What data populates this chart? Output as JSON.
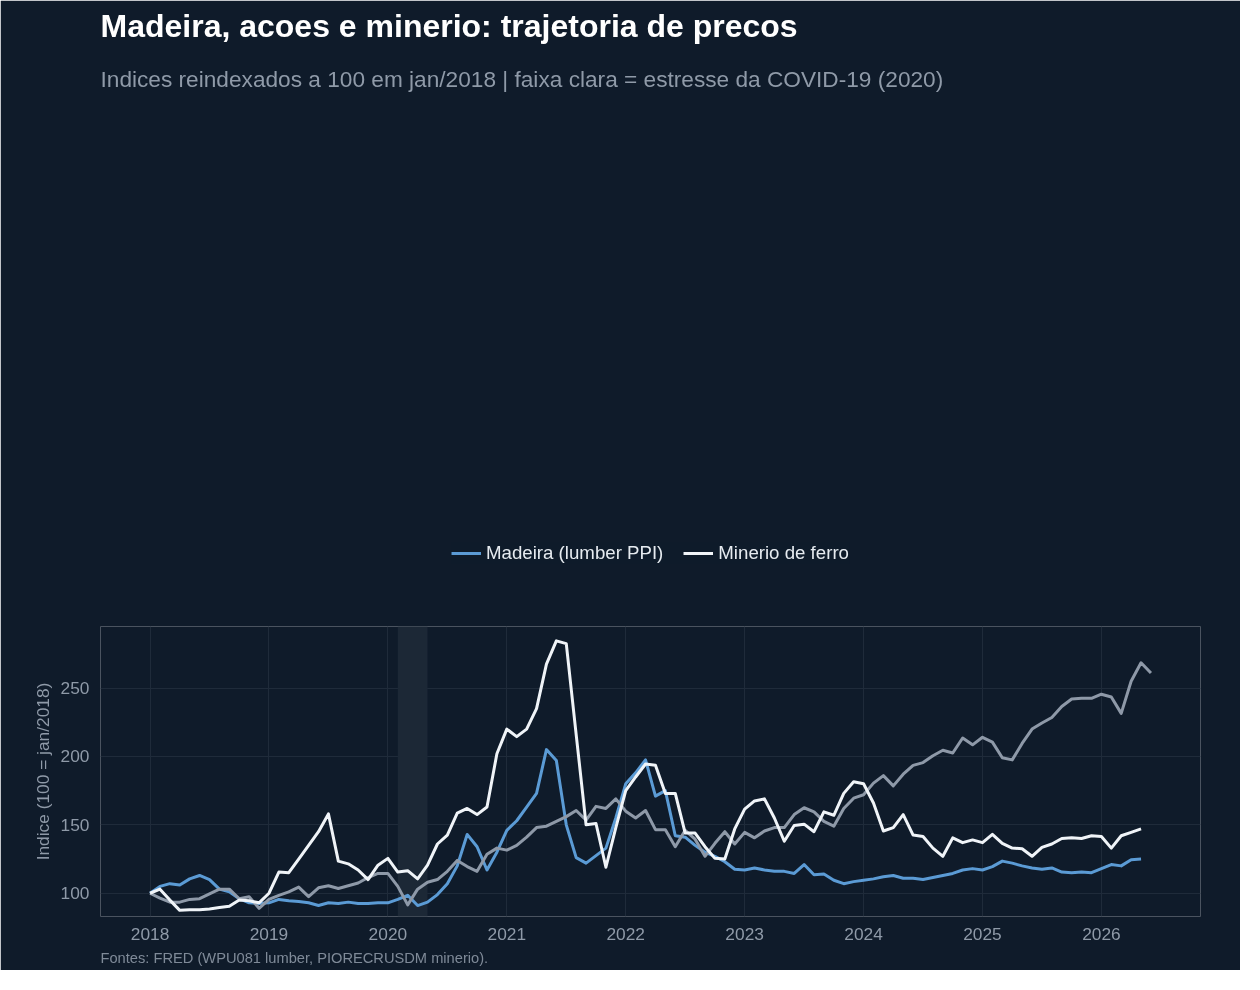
{
  "chart_data": {
    "type": "line",
    "title": "Madeira, acoes e minerio: trajetoria de precos",
    "subtitle": "Indices reindexados a 100 em jan/2018 | faixa clara = estresse da COVID-19 (2020)",
    "ylabel": "Indice (100 = jan/2018)",
    "annotations": [
      "Fontes: FRED (WPU081 lumber, PIORECRUSDM minerio)."
    ],
    "x": [
      "2018-01",
      "2018-02",
      "2018-03",
      "2018-04",
      "2018-05",
      "2018-06",
      "2018-07",
      "2018-08",
      "2018-09",
      "2018-10",
      "2018-11",
      "2018-12",
      "2019-01",
      "2019-02",
      "2019-03",
      "2019-04",
      "2019-05",
      "2019-06",
      "2019-07",
      "2019-08",
      "2019-09",
      "2019-10",
      "2019-11",
      "2019-12",
      "2020-01",
      "2020-02",
      "2020-03",
      "2020-04",
      "2020-05",
      "2020-06",
      "2020-07",
      "2020-08",
      "2020-09",
      "2020-10",
      "2020-11",
      "2020-12",
      "2021-01",
      "2021-02",
      "2021-03",
      "2021-04",
      "2021-05",
      "2021-06",
      "2021-07",
      "2021-08",
      "2021-09",
      "2021-10",
      "2021-11",
      "2021-12",
      "2022-01",
      "2022-02",
      "2022-03",
      "2022-04",
      "2022-05",
      "2022-06",
      "2022-07",
      "2022-08",
      "2022-09",
      "2022-10",
      "2022-11",
      "2022-12",
      "2023-01",
      "2023-02",
      "2023-03",
      "2023-04",
      "2023-05",
      "2023-06",
      "2023-07",
      "2023-08",
      "2023-09",
      "2023-10",
      "2023-11",
      "2023-12",
      "2024-01",
      "2024-02",
      "2024-03",
      "2024-04",
      "2024-05",
      "2024-06",
      "2024-07",
      "2024-08",
      "2024-09",
      "2024-10",
      "2024-11",
      "2024-12",
      "2025-01",
      "2025-02",
      "2025-03",
      "2025-04",
      "2025-05",
      "2025-06",
      "2025-07",
      "2025-08",
      "2025-09",
      "2025-10",
      "2025-11",
      "2025-12",
      "2026-01",
      "2026-02",
      "2026-03",
      "2026-04",
      "2026-05",
      "2026-06"
    ],
    "series": [
      {
        "name": "Madeira (lumber PPI)",
        "color": "#5b9bd5",
        "values": [
          100,
          105,
          107,
          106,
          110.5,
          113,
          110,
          103,
          101,
          96,
          93,
          92.5,
          93,
          95.5,
          94.5,
          94,
          93,
          91,
          93,
          92.5,
          93.5,
          92.5,
          92.5,
          93,
          93,
          95.5,
          98.5,
          91,
          93.5,
          99,
          107,
          120,
          143,
          134,
          117,
          130,
          146,
          153,
          163,
          173,
          205,
          197,
          150,
          126,
          122,
          127.5,
          133,
          155,
          180,
          188,
          197.5,
          171,
          175,
          142,
          141,
          135,
          130,
          127,
          123,
          117.5,
          117,
          118.5,
          117,
          116,
          116,
          114.5,
          121,
          113.5,
          114,
          109.5,
          107,
          108.5,
          109.5,
          110.5,
          112,
          113,
          111,
          111,
          110,
          111.5,
          113,
          114.5,
          117,
          118,
          117,
          119.5,
          123.5,
          122,
          120,
          118.5,
          117.5,
          118.5,
          115.5,
          115,
          115.5,
          115,
          118,
          121,
          120,
          124.5,
          125,
          null
        ]
      },
      {
        "color": "#8e99a8",
        "values": [
          100,
          96.5,
          93.5,
          93.5,
          95.5,
          96,
          99.5,
          103,
          103,
          96,
          97.5,
          89,
          95.5,
          98.5,
          101,
          104.5,
          97.5,
          104,
          105.5,
          103.5,
          105.5,
          107.5,
          111.5,
          114.5,
          114.5,
          105,
          91.5,
          103,
          108,
          110,
          116,
          124,
          119.5,
          116,
          128.5,
          133,
          131.5,
          135,
          141,
          148,
          149,
          152.5,
          156,
          160.5,
          153.5,
          163.5,
          162,
          169,
          160,
          155,
          160.5,
          146.5,
          146.5,
          134,
          146,
          139.5,
          127,
          136.5,
          145,
          136,
          144.5,
          140.5,
          145.5,
          148,
          148,
          157.5,
          162.5,
          159.5,
          152.5,
          149,
          162,
          169.5,
          172,
          180.5,
          186,
          178.5,
          187,
          193.5,
          195.5,
          200.5,
          204.5,
          202.5,
          213.5,
          208.5,
          214,
          210.5,
          199,
          197.5,
          209.5,
          220,
          224.5,
          228.5,
          236.5,
          242,
          242.5,
          242.5,
          245.5,
          243.5,
          231.5,
          255,
          268.5,
          261
        ]
      },
      {
        "name": "Minerio de ferro",
        "color": "#f0f4f8",
        "values": [
          100,
          103,
          95,
          87.5,
          88,
          88,
          88.5,
          89.5,
          90.5,
          95,
          94.5,
          93,
          100,
          115.5,
          115,
          125,
          135,
          145,
          158,
          123.5,
          121.5,
          117,
          110,
          120.5,
          125.5,
          115.5,
          116.5,
          110.5,
          120.5,
          136,
          142.5,
          158.5,
          162,
          157.5,
          163,
          202,
          220,
          214.5,
          220,
          235,
          267.5,
          284.5,
          282.5,
          216,
          150,
          151,
          119,
          148,
          175,
          185,
          194.5,
          193.5,
          173,
          173,
          144,
          144,
          134,
          125.5,
          125,
          147,
          161.5,
          167.5,
          169,
          155,
          138,
          149.5,
          150.5,
          145,
          159.5,
          157,
          173,
          181.5,
          180,
          166,
          145.5,
          148,
          157.5,
          142.5,
          141.5,
          133,
          127,
          140.5,
          137,
          139,
          137,
          143,
          136.5,
          133,
          132.5,
          127,
          133.5,
          136,
          140,
          140.5,
          140,
          142,
          141.5,
          133,
          142,
          144.5,
          147,
          null
        ]
      }
    ],
    "xlim": [
      "2017-08",
      "2026-11"
    ],
    "xticks": [
      "2018",
      "2019",
      "2020",
      "2021",
      "2022",
      "2023",
      "2024",
      "2025",
      "2026"
    ],
    "ylim": [
      83,
      295
    ],
    "yticks": [
      100,
      150,
      200,
      250
    ],
    "bands": [
      {
        "axis": "x",
        "from": "2020-02",
        "to": "2020-05",
        "color": "#1c2836"
      }
    ],
    "grid": true,
    "legend": "top",
    "line_style": "solid",
    "marker": "none"
  }
}
